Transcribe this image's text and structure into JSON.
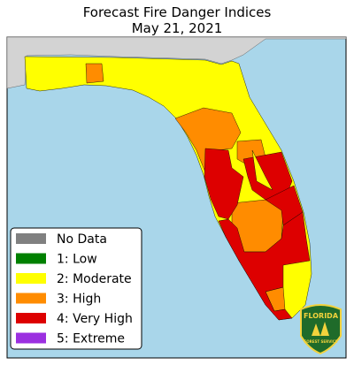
{
  "title": [
    "Forecast Fire Danger Indices",
    "May 21, 2021"
  ],
  "legend": {
    "items": [
      {
        "label": "No Data",
        "color": "#808080"
      },
      {
        "label": "1: Low",
        "color": "#008000"
      },
      {
        "label": "2: Moderate",
        "color": "#ffff00"
      },
      {
        "label": "3: High",
        "color": "#ff8c00"
      },
      {
        "label": "4: Very High",
        "color": "#dd0000"
      },
      {
        "label": "5: Extreme",
        "color": "#9b30e0"
      }
    ]
  },
  "logo": {
    "top": "FLORIDA",
    "bottom": "FOREST SERVICE"
  }
}
